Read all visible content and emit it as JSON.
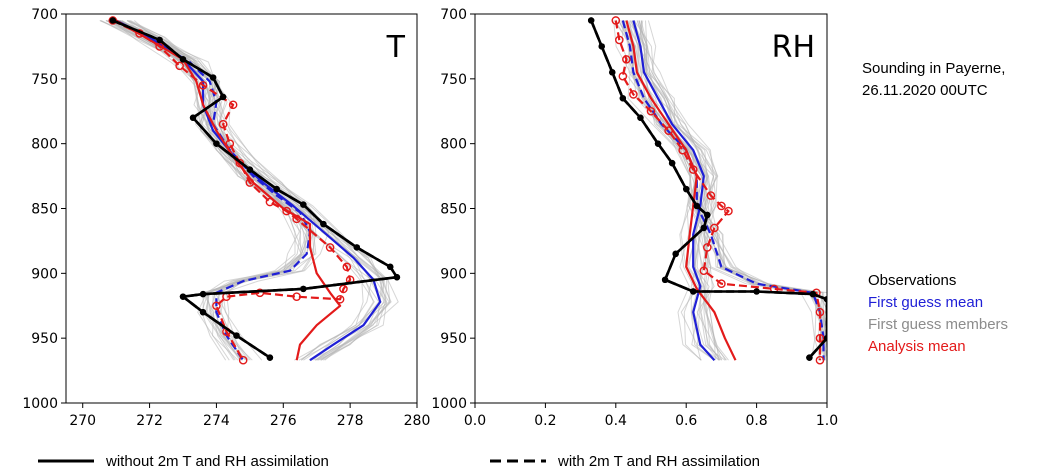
{
  "figure": {
    "caption_line1": "Sounding in Payerne,",
    "caption_line2": "26.11.2020 00UTC",
    "legend": [
      {
        "label": "Observations",
        "color": "#000000"
      },
      {
        "label": "First guess mean",
        "color": "#1f1fd6"
      },
      {
        "label": "First guess members",
        "color": "#8c8c8c"
      },
      {
        "label": "Analysis mean",
        "color": "#e31a1a"
      }
    ],
    "style_legend": [
      {
        "label": "without 2m T and RH assimilation",
        "dash": "solid"
      },
      {
        "label": "with 2m T and RH assimilation",
        "dash": "dashed"
      }
    ],
    "colors": {
      "observations": "#000000",
      "first_guess_mean": "#1f1fd6",
      "members": "#b4b4b4",
      "analysis": "#e31a1a"
    }
  },
  "chart_data": [
    {
      "type": "line",
      "panel_label": "T",
      "xlim": [
        269.5,
        280
      ],
      "ylim": [
        1000,
        700
      ],
      "xticks": [
        "270",
        "272",
        "274",
        "276",
        "278",
        "280"
      ],
      "xtick_values": [
        270,
        272,
        274,
        276,
        278,
        280
      ],
      "yticks": [
        "700",
        "750",
        "800",
        "850",
        "900",
        "950",
        "1000"
      ],
      "ytick_values": [
        700,
        750,
        800,
        850,
        900,
        950,
        1000
      ],
      "y": [
        705,
        720,
        735,
        750,
        765,
        780,
        800,
        820,
        835,
        848,
        860,
        880,
        895,
        905,
        912,
        918,
        930,
        945,
        960,
        965
      ],
      "series": [
        {
          "role": "observations",
          "style": "solid",
          "points": [
            [
              270.9,
              705
            ],
            [
              272.3,
              720
            ],
            [
              273,
              735
            ],
            [
              273.9,
              749
            ],
            [
              274.2,
              764
            ],
            [
              273.3,
              780
            ],
            [
              274,
              800
            ],
            [
              275,
              820
            ],
            [
              275.8,
              835
            ],
            [
              276.6,
              847
            ],
            [
              277.2,
              862
            ],
            [
              278.2,
              880
            ],
            [
              279.2,
              895
            ],
            [
              279.4,
              903
            ],
            [
              276.6,
              912
            ],
            [
              273.6,
              916
            ],
            [
              273,
              918
            ],
            [
              273.6,
              930
            ],
            [
              274.6,
              948
            ],
            [
              275.6,
              965
            ]
          ]
        },
        {
          "role": "observations",
          "style": "dashed",
          "points": [
            [
              270.9,
              705
            ],
            [
              272.3,
              720
            ],
            [
              273,
              735
            ],
            [
              273.9,
              749
            ],
            [
              274.2,
              764
            ],
            [
              273.3,
              780
            ],
            [
              274,
              800
            ],
            [
              275,
              820
            ],
            [
              275.8,
              835
            ],
            [
              276.6,
              847
            ],
            [
              277.2,
              862
            ],
            [
              278.2,
              880
            ],
            [
              279.2,
              895
            ],
            [
              279.4,
              903
            ],
            [
              276.6,
              912
            ],
            [
              273.6,
              916
            ],
            [
              273,
              918
            ],
            [
              273.6,
              930
            ],
            [
              274.6,
              948
            ],
            [
              275.6,
              965
            ]
          ]
        },
        {
          "role": "first_guess_mean",
          "style": "solid",
          "points": [
            [
              271,
              705
            ],
            [
              272,
              718
            ],
            [
              273,
              735
            ],
            [
              273.6,
              752
            ],
            [
              273.6,
              770
            ],
            [
              273.9,
              790
            ],
            [
              274.6,
              812
            ],
            [
              275.4,
              830
            ],
            [
              276.3,
              848
            ],
            [
              277.2,
              868
            ],
            [
              278.1,
              888
            ],
            [
              278.7,
              905
            ],
            [
              278.9,
              922
            ],
            [
              278.4,
              940
            ],
            [
              277.5,
              955
            ],
            [
              276.8,
              967
            ]
          ]
        },
        {
          "role": "first_guess_mean",
          "style": "dashed",
          "points": [
            [
              271,
              705
            ],
            [
              272.1,
              720
            ],
            [
              273.2,
              737
            ],
            [
              273.8,
              752
            ],
            [
              274,
              768
            ],
            [
              273.9,
              785
            ],
            [
              274.4,
              805
            ],
            [
              275.1,
              825
            ],
            [
              275.8,
              840
            ],
            [
              276.5,
              853
            ],
            [
              276.8,
              868
            ],
            [
              276.7,
              885
            ],
            [
              276.2,
              898
            ],
            [
              274.8,
              906
            ],
            [
              274,
              915
            ],
            [
              274,
              930
            ],
            [
              274.3,
              948
            ],
            [
              274.8,
              967
            ]
          ]
        },
        {
          "role": "analysis",
          "style": "solid",
          "points": [
            [
              271,
              705
            ],
            [
              272,
              720
            ],
            [
              273,
              735
            ],
            [
              273.4,
              752
            ],
            [
              273.6,
              770
            ],
            [
              274,
              790
            ],
            [
              274.5,
              810
            ],
            [
              275.1,
              830
            ],
            [
              276,
              850
            ],
            [
              276.8,
              862
            ],
            [
              276.8,
              880
            ],
            [
              277,
              900
            ],
            [
              277.4,
              915
            ],
            [
              277.7,
              925
            ],
            [
              277,
              940
            ],
            [
              276.5,
              955
            ],
            [
              276.4,
              967
            ]
          ]
        },
        {
          "role": "analysis",
          "style": "dashed",
          "points": [
            [
              270.9,
              705
            ],
            [
              271.7,
              715
            ],
            [
              272.3,
              725
            ],
            [
              272.9,
              740
            ],
            [
              273.6,
              755
            ],
            [
              274.5,
              770
            ],
            [
              274.2,
              785
            ],
            [
              274.4,
              800
            ],
            [
              274.7,
              815
            ],
            [
              275,
              830
            ],
            [
              275.6,
              845
            ],
            [
              276.1,
              852
            ],
            [
              276.4,
              858
            ],
            [
              277.4,
              880
            ],
            [
              277.9,
              895
            ],
            [
              278,
              905
            ],
            [
              277.8,
              912
            ],
            [
              277.7,
              920
            ],
            [
              276.4,
              918
            ],
            [
              275.3,
              915
            ],
            [
              274.3,
              918
            ],
            [
              274,
              925
            ],
            [
              274.3,
              945
            ],
            [
              274.8,
              967
            ]
          ]
        }
      ]
    },
    {
      "type": "line",
      "panel_label": "RH",
      "xlim": [
        0,
        1
      ],
      "ylim": [
        1000,
        700
      ],
      "xticks": [
        "0.0",
        "0.2",
        "0.4",
        "0.6",
        "0.8",
        "1.0"
      ],
      "xtick_values": [
        0,
        0.2,
        0.4,
        0.6,
        0.8,
        1.0
      ],
      "yticks": [
        "700",
        "750",
        "800",
        "850",
        "900",
        "950",
        "1000"
      ],
      "ytick_values": [
        700,
        750,
        800,
        850,
        900,
        950,
        1000
      ],
      "series": [
        {
          "role": "observations",
          "style": "solid",
          "points": [
            [
              0.33,
              705
            ],
            [
              0.36,
              725
            ],
            [
              0.39,
              745
            ],
            [
              0.42,
              765
            ],
            [
              0.47,
              780
            ],
            [
              0.52,
              800
            ],
            [
              0.56,
              815
            ],
            [
              0.6,
              835
            ],
            [
              0.63,
              848
            ],
            [
              0.66,
              855
            ],
            [
              0.65,
              865
            ],
            [
              0.57,
              885
            ],
            [
              0.54,
              905
            ],
            [
              0.62,
              914
            ],
            [
              0.8,
              914
            ],
            [
              0.96,
              916
            ],
            [
              1,
              920
            ],
            [
              1,
              950
            ],
            [
              0.95,
              965
            ]
          ]
        },
        {
          "role": "observations",
          "style": "dashed",
          "points": [
            [
              0.33,
              705
            ],
            [
              0.36,
              725
            ],
            [
              0.39,
              745
            ],
            [
              0.42,
              765
            ],
            [
              0.47,
              780
            ],
            [
              0.52,
              800
            ],
            [
              0.56,
              815
            ],
            [
              0.6,
              835
            ],
            [
              0.63,
              848
            ],
            [
              0.66,
              855
            ],
            [
              0.65,
              865
            ],
            [
              0.57,
              885
            ],
            [
              0.54,
              905
            ],
            [
              0.62,
              914
            ],
            [
              0.8,
              914
            ],
            [
              0.96,
              916
            ],
            [
              1,
              920
            ],
            [
              1,
              950
            ],
            [
              0.95,
              965
            ]
          ]
        },
        {
          "role": "first_guess_mean",
          "style": "solid",
          "points": [
            [
              0.45,
              705
            ],
            [
              0.47,
              725
            ],
            [
              0.48,
              745
            ],
            [
              0.52,
              765
            ],
            [
              0.56,
              785
            ],
            [
              0.62,
              805
            ],
            [
              0.65,
              825
            ],
            [
              0.64,
              848
            ],
            [
              0.62,
              870
            ],
            [
              0.62,
              895
            ],
            [
              0.64,
              910
            ],
            [
              0.62,
              930
            ],
            [
              0.64,
              955
            ],
            [
              0.68,
              967
            ]
          ]
        },
        {
          "role": "first_guess_mean",
          "style": "dashed",
          "points": [
            [
              0.42,
              705
            ],
            [
              0.44,
              725
            ],
            [
              0.45,
              745
            ],
            [
              0.48,
              765
            ],
            [
              0.53,
              785
            ],
            [
              0.6,
              805
            ],
            [
              0.63,
              825
            ],
            [
              0.63,
              848
            ],
            [
              0.67,
              870
            ],
            [
              0.7,
              895
            ],
            [
              0.8,
              908
            ],
            [
              0.96,
              915
            ],
            [
              0.98,
              930
            ],
            [
              0.99,
              950
            ],
            [
              0.99,
              967
            ]
          ]
        },
        {
          "role": "analysis",
          "style": "solid",
          "points": [
            [
              0.43,
              705
            ],
            [
              0.45,
              725
            ],
            [
              0.46,
              745
            ],
            [
              0.5,
              765
            ],
            [
              0.55,
              785
            ],
            [
              0.6,
              805
            ],
            [
              0.63,
              825
            ],
            [
              0.62,
              848
            ],
            [
              0.61,
              870
            ],
            [
              0.6,
              895
            ],
            [
              0.63,
              912
            ],
            [
              0.68,
              930
            ],
            [
              0.71,
              950
            ],
            [
              0.74,
              967
            ]
          ]
        },
        {
          "role": "analysis",
          "style": "dashed",
          "points": [
            [
              0.4,
              705
            ],
            [
              0.41,
              720
            ],
            [
              0.43,
              735
            ],
            [
              0.42,
              748
            ],
            [
              0.45,
              762
            ],
            [
              0.5,
              775
            ],
            [
              0.55,
              790
            ],
            [
              0.59,
              805
            ],
            [
              0.62,
              820
            ],
            [
              0.67,
              840
            ],
            [
              0.7,
              848
            ],
            [
              0.72,
              852
            ],
            [
              0.68,
              865
            ],
            [
              0.66,
              880
            ],
            [
              0.65,
              898
            ],
            [
              0.7,
              908
            ],
            [
              0.85,
              912
            ],
            [
              0.97,
              915
            ],
            [
              0.98,
              930
            ],
            [
              0.98,
              950
            ],
            [
              0.98,
              967
            ]
          ]
        }
      ],
      "members_note": ""
    }
  ]
}
